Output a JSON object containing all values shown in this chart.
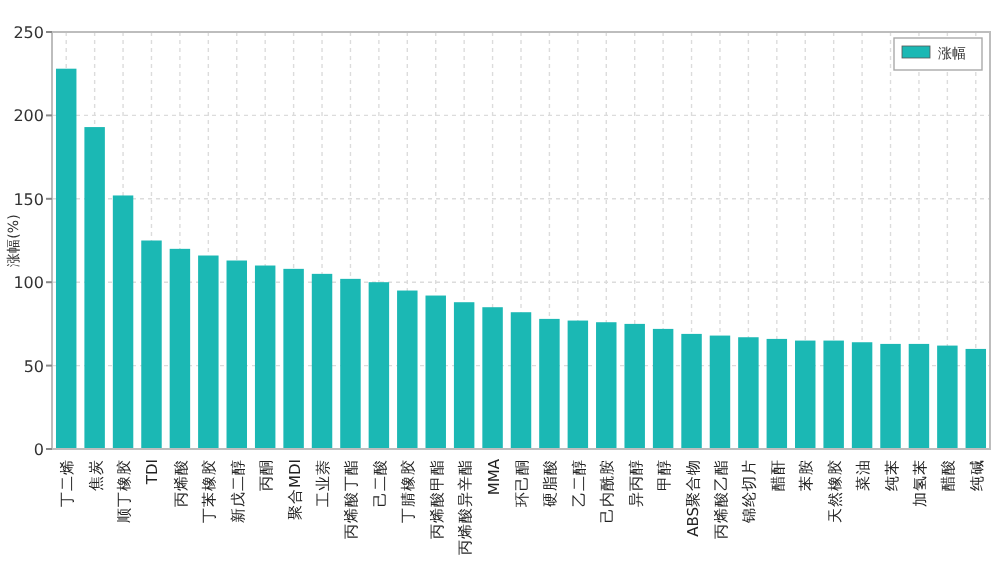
{
  "chart_data": {
    "type": "bar",
    "ylabel": "涨幅(%)",
    "categories": [
      "丁二烯",
      "焦炭",
      "顺丁橡胶",
      "TDI",
      "丙烯酸",
      "丁苯橡胶",
      "新戊二醇",
      "丙酮",
      "聚合MDI",
      "工业萘",
      "丙烯酸丁酯",
      "己二酸",
      "丁腈橡胶",
      "丙烯酸甲酯",
      "丙烯酸异辛酯",
      "MMA",
      "环己酮",
      "硬脂酸",
      "乙二醇",
      "己内酰胺",
      "异丙醇",
      "甲醇",
      "ABS聚合物",
      "丙烯酸乙酯",
      "锦纶切片",
      "醋酐",
      "苯胺",
      "天然橡胶",
      "菜油",
      "纯苯",
      "加氢苯",
      "醋酸",
      "纯碱"
    ],
    "series": [
      {
        "name": "涨幅",
        "color": "#1bb8b4",
        "values": [
          228,
          193,
          152,
          125,
          120,
          116,
          113,
          110,
          108,
          105,
          102,
          100,
          95,
          92,
          88,
          85,
          82,
          78,
          77,
          76,
          75,
          72,
          69,
          68,
          67,
          66,
          65,
          65,
          64,
          63,
          63,
          62,
          60
        ]
      }
    ],
    "ylim": [
      0,
      250
    ],
    "yticks": [
      0,
      50,
      100,
      150,
      200,
      250
    ],
    "grid": true,
    "legend": "top right"
  }
}
